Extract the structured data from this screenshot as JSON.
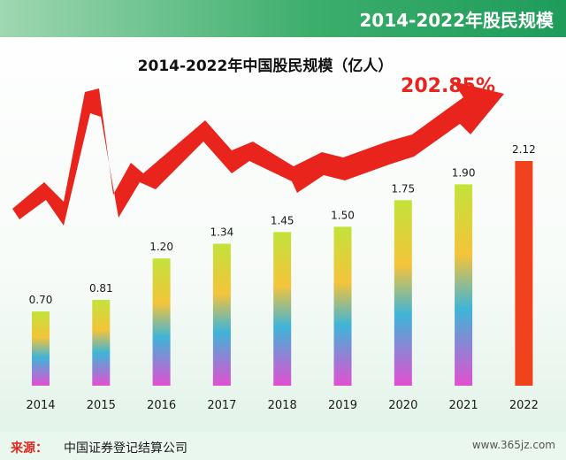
{
  "banner_title": "2014-2022年股民规模",
  "source": {
    "label": "来源：",
    "text": "中国证券登记结算公司"
  },
  "watermark": "www.365jz.com",
  "growth_label": "202.85%",
  "colors": {
    "banner_bg": "#1f9c5a",
    "banner_text": "#ffffff",
    "growth_arrow": "#e8241c",
    "highlight_bar": "#f0421c",
    "bar_gradient": [
      "#c2e33a",
      "#f4c43a",
      "#3fb4d8",
      "#e34fd1"
    ],
    "footer_bg": "#eaf7ef",
    "source_label": "#e0261c"
  },
  "chart_data": {
    "type": "bar",
    "title": "2014-2022年中国股民规模（亿人）",
    "categories": [
      "2014",
      "2015",
      "2016",
      "2017",
      "2018",
      "2019",
      "2020",
      "2021",
      "2022"
    ],
    "values": [
      0.7,
      0.81,
      1.2,
      1.34,
      1.45,
      1.5,
      1.75,
      1.9,
      2.12
    ],
    "value_labels": [
      "0.70",
      "0.81",
      "1.20",
      "1.34",
      "1.45",
      "1.50",
      "1.75",
      "1.90",
      "2.12"
    ],
    "highlight_category": "2022",
    "ylim": [
      0,
      2.12
    ],
    "grid": false,
    "legend": "none"
  }
}
